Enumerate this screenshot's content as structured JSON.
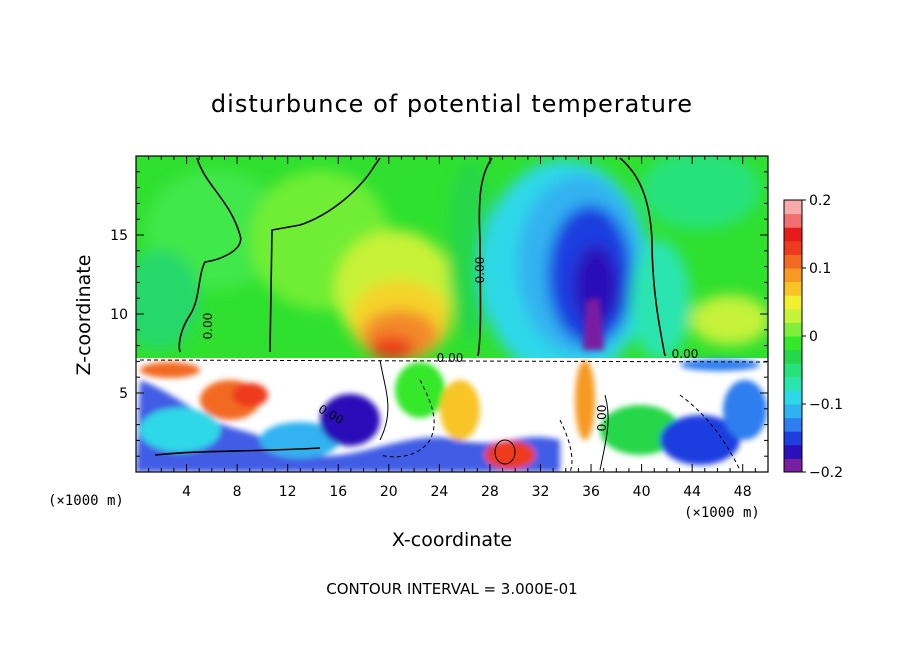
{
  "chart_data": {
    "type": "heatmap",
    "title": "disturbunce of potential temperature",
    "xlabel": "X-coordinate",
    "ylabel": "Z-coordinate",
    "x_unit_label_left": "(×1000 m)",
    "x_unit_label_right": "(×1000 m)",
    "xlim": [
      0,
      50
    ],
    "ylim": [
      0,
      20
    ],
    "x_ticks": [
      4,
      8,
      12,
      16,
      20,
      24,
      28,
      32,
      36,
      40,
      44,
      48
    ],
    "y_ticks": [
      5,
      10,
      15
    ],
    "colorbar": {
      "range": [
        -0.2,
        0.2
      ],
      "tick_labels": [
        "0.2",
        "0.1",
        "0",
        "−0.1",
        "−0.2"
      ],
      "tick_values": [
        0.2,
        0.1,
        0,
        -0.1,
        -0.2
      ],
      "colors": [
        "#7a1fa2",
        "#2b0fb8",
        "#1f3ee0",
        "#2f7ef0",
        "#31b2f0",
        "#2ed8e8",
        "#2be5b0",
        "#27e27a",
        "#25d74a",
        "#35e82a",
        "#7ef03a",
        "#c6f23a",
        "#f0f02e",
        "#f8c428",
        "#f69a24",
        "#f26a22",
        "#ee3a1e",
        "#e61c1c",
        "#f26f6f",
        "#f8aaaa"
      ]
    },
    "contour_labels": [
      "0.00",
      "0.00",
      "0.00",
      "0.00",
      "0.00",
      "0.00"
    ],
    "footer": "CONTOUR INTERVAL = 3.000E-01"
  }
}
